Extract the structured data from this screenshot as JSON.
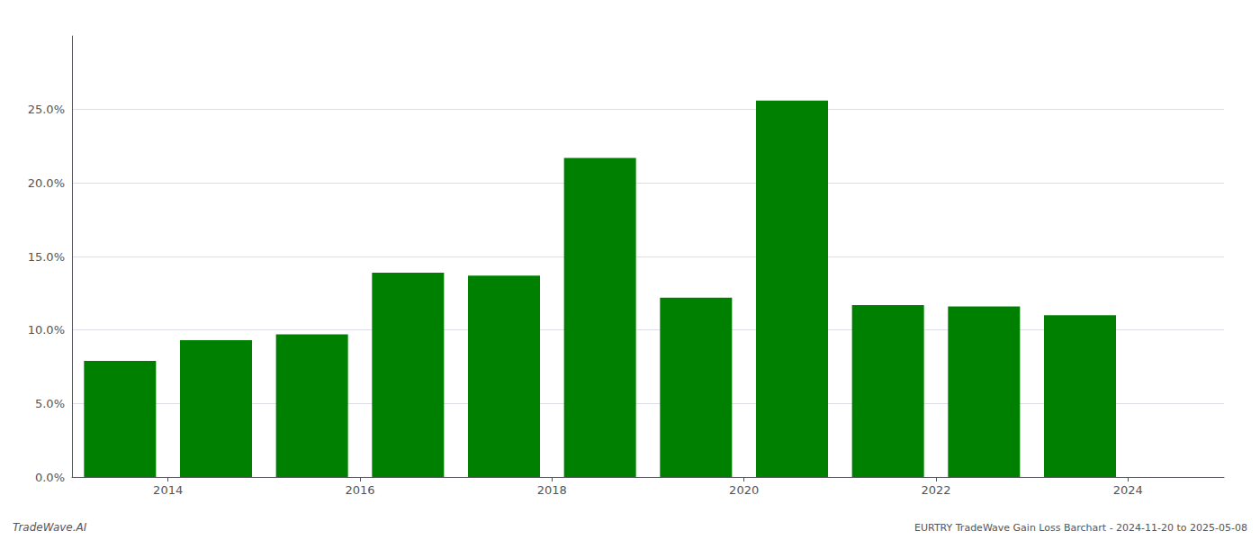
{
  "chart_data": {
    "type": "bar",
    "x": [
      2013,
      2014,
      2015,
      2016,
      2017,
      2018,
      2019,
      2020,
      2021,
      2022,
      2023
    ],
    "values": [
      0.079,
      0.093,
      0.097,
      0.139,
      0.137,
      0.217,
      0.122,
      0.256,
      0.117,
      0.116,
      0.11
    ],
    "color": "#008000",
    "xlim": [
      2012.5,
      2024.5
    ],
    "xticks": [
      {
        "value": 2013.5,
        "label": "2014"
      },
      {
        "value": 2015.5,
        "label": "2016"
      },
      {
        "value": 2017.5,
        "label": "2018"
      },
      {
        "value": 2019.5,
        "label": "2020"
      },
      {
        "value": 2021.5,
        "label": "2022"
      },
      {
        "value": 2023.5,
        "label": "2024"
      }
    ],
    "ylim": [
      0,
      0.3
    ],
    "yticks": [
      {
        "value": 0.0,
        "label": "0.0%"
      },
      {
        "value": 0.05,
        "label": "5.0%"
      },
      {
        "value": 0.1,
        "label": "10.0%"
      },
      {
        "value": 0.15,
        "label": "15.0%"
      },
      {
        "value": 0.2,
        "label": "20.0%"
      },
      {
        "value": 0.25,
        "label": "25.0%"
      }
    ],
    "grid": true,
    "annotations": [
      {
        "text": "TradeWave.AI"
      },
      {
        "text": "EURTRY TradeWave Gain Loss Barchart - 2024-11-20 to 2025-05-08"
      }
    ]
  }
}
